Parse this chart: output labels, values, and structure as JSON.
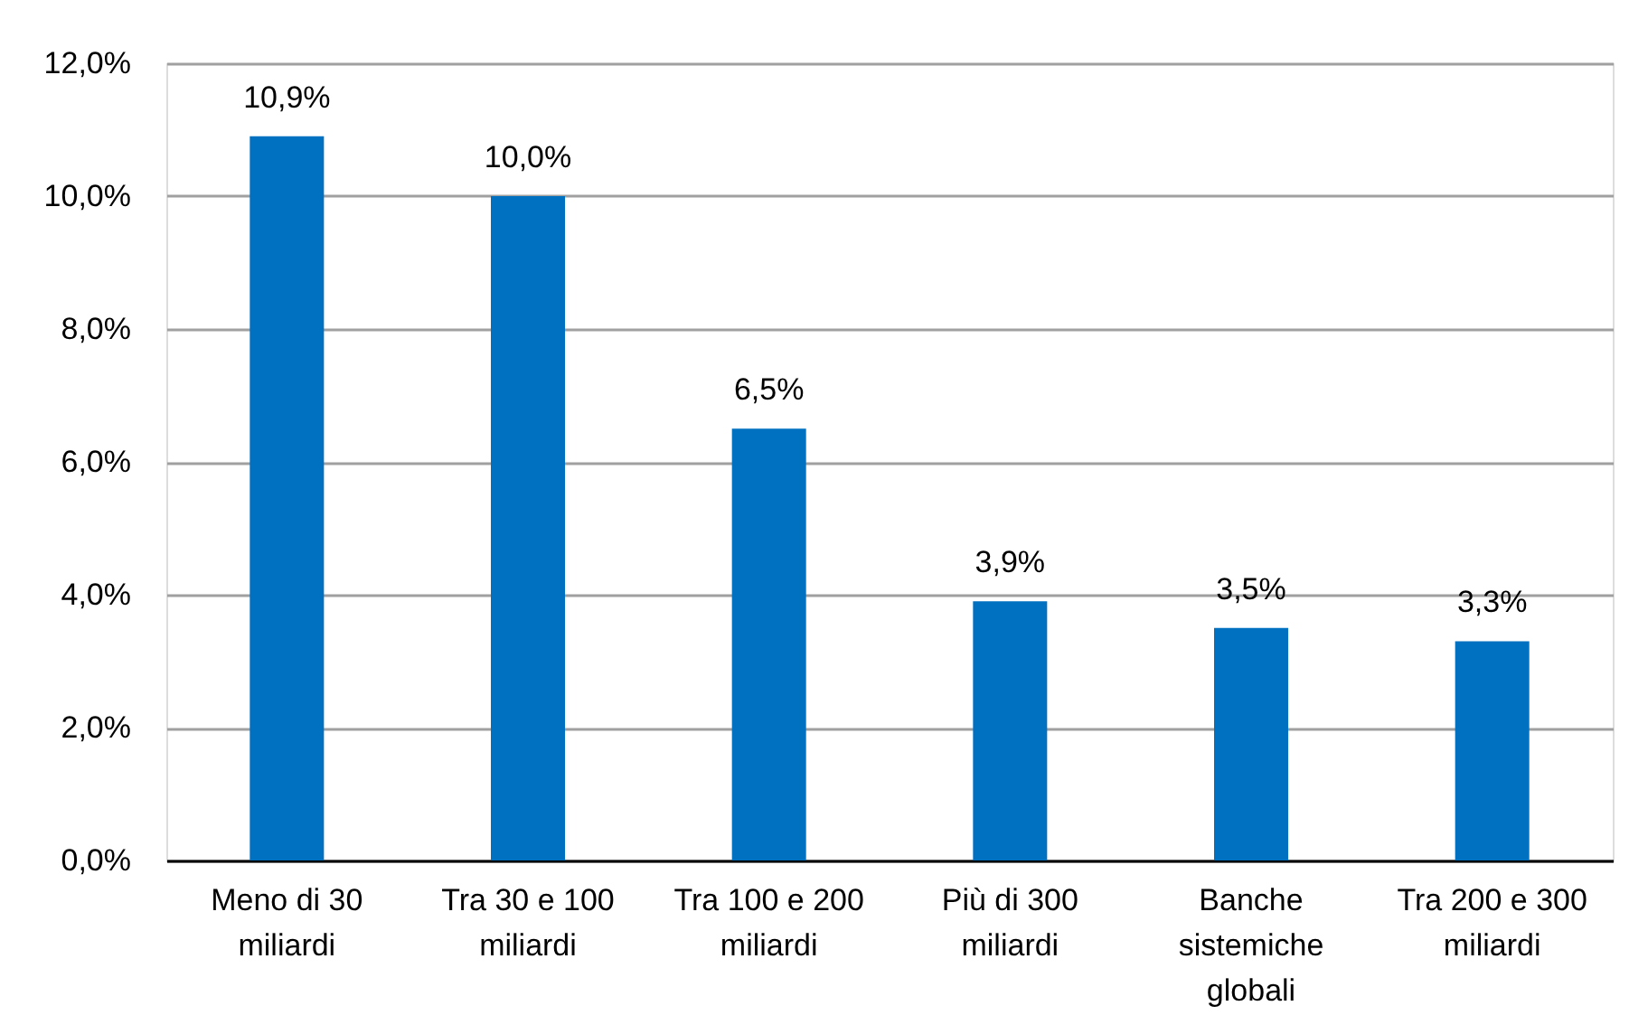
{
  "chart_data": {
    "type": "bar",
    "categories": [
      "Meno di 30 miliardi",
      "Tra 30 e 100 miliardi",
      "Tra 100 e 200 miliardi",
      "Più di 300 miliardi",
      "Banche sistemiche globali",
      "Tra 200 e 300 miliardi"
    ],
    "values": [
      10.9,
      10.0,
      6.5,
      3.9,
      3.5,
      3.3
    ],
    "color": "#0070c0",
    "value_labels": [
      "10,9%",
      "10,0%",
      "6,5%",
      "3,9%",
      "3,5%",
      "3,3%"
    ],
    "ylim": [
      0,
      12
    ],
    "yticks": [
      {
        "value": 0,
        "label": "0,0%"
      },
      {
        "value": 2,
        "label": "2,0%"
      },
      {
        "value": 4,
        "label": "4,0%"
      },
      {
        "value": 6,
        "label": "6,0%"
      },
      {
        "value": 8,
        "label": "8,0%"
      },
      {
        "value": 10,
        "label": "10,0%"
      },
      {
        "value": 12,
        "label": "12,0%"
      }
    ],
    "grid": "y"
  }
}
